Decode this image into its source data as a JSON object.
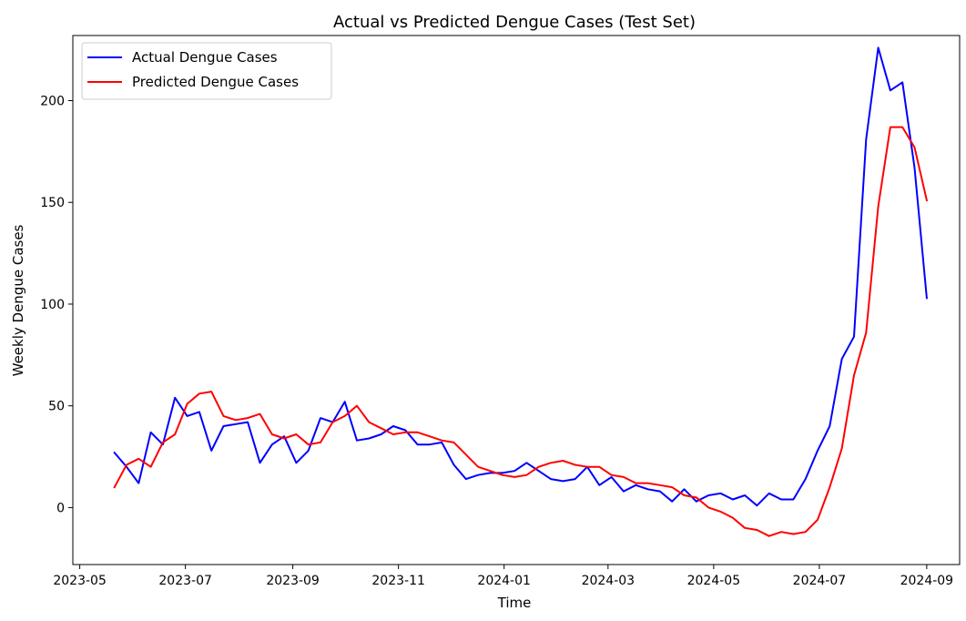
{
  "chart_data": {
    "type": "line",
    "title": "Actual vs Predicted Dengue Cases (Test Set)",
    "xlabel": "Time",
    "ylabel": "Weekly Dengue Cases",
    "x_tick_labels": [
      "2023-05",
      "2023-07",
      "2023-09",
      "2023-11",
      "2024-01",
      "2024-03",
      "2024-05",
      "2024-07",
      "2024-09"
    ],
    "x_tick_dates": [
      "2023-05-01",
      "2023-07-01",
      "2023-09-01",
      "2023-11-01",
      "2024-01-01",
      "2024-03-01",
      "2024-05-01",
      "2024-07-01",
      "2024-09-01"
    ],
    "xlim": [
      "2023-04-27",
      "2024-09-20"
    ],
    "y_ticks": [
      0,
      50,
      100,
      150,
      200
    ],
    "ylim": [
      -28,
      232
    ],
    "grid": false,
    "legend_position": "top-left",
    "x": [
      "2023-05-21",
      "2023-05-28",
      "2023-06-04",
      "2023-06-11",
      "2023-06-18",
      "2023-06-25",
      "2023-07-02",
      "2023-07-09",
      "2023-07-16",
      "2023-07-23",
      "2023-07-30",
      "2023-08-06",
      "2023-08-13",
      "2023-08-20",
      "2023-08-27",
      "2023-09-03",
      "2023-09-10",
      "2023-09-17",
      "2023-09-24",
      "2023-10-01",
      "2023-10-08",
      "2023-10-15",
      "2023-10-22",
      "2023-10-29",
      "2023-11-05",
      "2023-11-12",
      "2023-11-19",
      "2023-11-26",
      "2023-12-03",
      "2023-12-10",
      "2023-12-17",
      "2023-12-24",
      "2023-12-31",
      "2024-01-07",
      "2024-01-14",
      "2024-01-21",
      "2024-01-28",
      "2024-02-04",
      "2024-02-11",
      "2024-02-18",
      "2024-02-25",
      "2024-03-03",
      "2024-03-10",
      "2024-03-17",
      "2024-03-24",
      "2024-03-31",
      "2024-04-07",
      "2024-04-14",
      "2024-04-21",
      "2024-04-28",
      "2024-05-05",
      "2024-05-12",
      "2024-05-19",
      "2024-05-26",
      "2024-06-02",
      "2024-06-09",
      "2024-06-16",
      "2024-06-23",
      "2024-06-30",
      "2024-07-07",
      "2024-07-14",
      "2024-07-21",
      "2024-07-28",
      "2024-08-04",
      "2024-08-11",
      "2024-08-18",
      "2024-08-25",
      "2024-09-01"
    ],
    "series": [
      {
        "name": "Actual Dengue Cases",
        "color": "#0000ff",
        "values": [
          27,
          20,
          12,
          37,
          31,
          54,
          45,
          47,
          28,
          40,
          41,
          42,
          22,
          31,
          35,
          22,
          28,
          44,
          42,
          52,
          33,
          34,
          36,
          40,
          38,
          31,
          31,
          32,
          21,
          14,
          16,
          17,
          17,
          18,
          22,
          18,
          14,
          13,
          14,
          20,
          11,
          15,
          8,
          11,
          9,
          8,
          3,
          9,
          3,
          6,
          7,
          4,
          6,
          1,
          7,
          4,
          4,
          14,
          28,
          40,
          73,
          84,
          181,
          226,
          205,
          209,
          167,
          103
        ]
      },
      {
        "name": "Predicted Dengue Cases",
        "color": "#ff0000",
        "values": [
          10,
          21,
          24,
          20,
          32,
          36,
          51,
          56,
          57,
          45,
          43,
          44,
          46,
          36,
          34,
          36,
          31,
          32,
          42,
          45,
          50,
          42,
          39,
          36,
          37,
          37,
          35,
          33,
          32,
          26,
          20,
          18,
          16,
          15,
          16,
          20,
          22,
          23,
          21,
          20,
          20,
          16,
          15,
          12,
          12,
          11,
          10,
          6,
          5,
          0,
          -2,
          -5,
          -10,
          -11,
          -14,
          -12,
          -13,
          -12,
          -6,
          10,
          29,
          65,
          86,
          148,
          187,
          187,
          177,
          151
        ]
      }
    ]
  }
}
